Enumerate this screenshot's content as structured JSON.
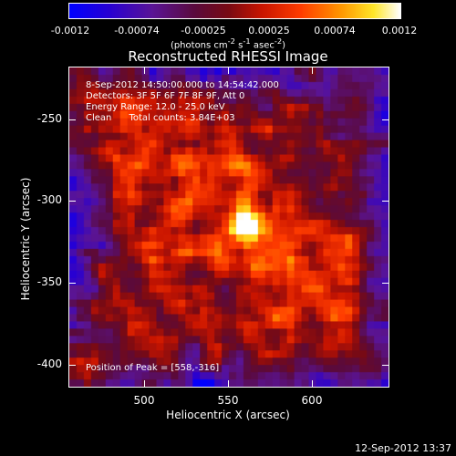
{
  "colorbar": {
    "ticks": [
      "-0.0012",
      "-0.00074",
      "-0.00025",
      "0.00025",
      "0.00074",
      "0.0012"
    ],
    "units_main": "(photons cm",
    "units_sup1": "-2",
    "units_mid": " s",
    "units_sup2": "-1",
    "units_tail": " asec",
    "units_sup3": "-2",
    "units_close": ")"
  },
  "title": "Reconstructed RHESSI Image",
  "annotations": {
    "time": "8-Sep-2012 14:50:00.000 to 14:54:42.000",
    "detectors": "Detectors: 3F 5F 6F 7F 8F 9F, Att 0",
    "energy": "Energy Range: 12.0 - 25.0 keV",
    "clean": "Clean      Total counts: 3.84E+03",
    "peak": "Position of Peak = [558,-316]"
  },
  "axes": {
    "xlabel": "Heliocentric X (arcsec)",
    "ylabel": "Heliocentric Y (arcsec)",
    "xticks": [
      "500",
      "550",
      "600"
    ],
    "yticks": [
      "-250",
      "-300",
      "-350",
      "-400"
    ]
  },
  "timestamp": "12-Sep-2012 13:37",
  "colors": {
    "background": "#000000",
    "frame": "#ffffff"
  }
}
